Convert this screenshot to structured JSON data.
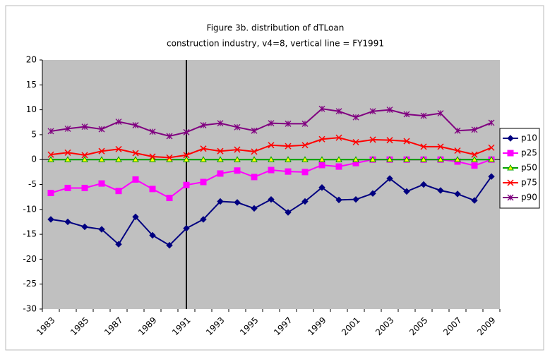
{
  "chart_data": {
    "type": "line",
    "title": "Figure 3b.  distribution of dTLoan",
    "subtitle": "construction industry, v4=8, vertical line = FY1991",
    "categories": [
      "1983",
      null,
      "1985",
      null,
      "1987",
      null,
      "1989",
      null,
      "1991",
      null,
      "1993",
      null,
      "1995",
      null,
      "1997",
      null,
      "1999",
      null,
      "2001",
      null,
      "2003",
      null,
      "2005",
      null,
      "2007",
      null,
      "2009"
    ],
    "vertical_line": "1991",
    "ylim": [
      -30,
      20
    ],
    "yticks": [
      -30,
      -25,
      -20,
      -15,
      -10,
      -5,
      0,
      5,
      10,
      15,
      20
    ],
    "legend": "right",
    "series": [
      {
        "name": "p10",
        "color": "#000080",
        "marker": "diamond",
        "values": [
          -12,
          -12.5,
          -13.5,
          -14,
          -17,
          -11.5,
          -15.2,
          -17.2,
          -13.8,
          -12,
          -8.4,
          -8.6,
          -9.8,
          -8,
          -10.6,
          -8.4,
          -5.6,
          -8.1,
          -8,
          -6.8,
          -3.8,
          -6.4,
          -5,
          -6.2,
          -6.9,
          -8.2,
          -3.4
        ]
      },
      {
        "name": "p25",
        "color": "#ff00ff",
        "marker": "square",
        "values": [
          -6.7,
          -5.7,
          -5.7,
          -4.8,
          -6.3,
          -4,
          -5.9,
          -7.7,
          -5.1,
          -4.5,
          -2.8,
          -2.2,
          -3.5,
          -2.1,
          -2.4,
          -2.5,
          -1.1,
          -1.4,
          -0.7,
          0,
          0,
          0,
          0,
          0,
          -0.4,
          -1.2,
          0
        ]
      },
      {
        "name": "p50",
        "color": "#00a000",
        "marker": "triangle",
        "values": [
          0,
          0,
          0,
          0,
          0,
          0,
          0,
          0,
          0,
          0,
          0,
          0,
          0,
          0,
          0,
          0,
          0,
          0,
          0,
          0,
          0,
          0,
          0,
          0,
          0,
          0,
          0
        ]
      },
      {
        "name": "p75",
        "color": "#ff0000",
        "marker": "x",
        "values": [
          1,
          1.4,
          0.9,
          1.7,
          2.1,
          1.3,
          0.6,
          0.4,
          0.9,
          2.2,
          1.7,
          2,
          1.6,
          2.9,
          2.7,
          2.9,
          4.1,
          4.4,
          3.5,
          4,
          3.9,
          3.7,
          2.6,
          2.6,
          1.8,
          1,
          2.4
        ]
      },
      {
        "name": "p90",
        "color": "#800080",
        "marker": "star",
        "values": [
          5.7,
          6.2,
          6.6,
          6.1,
          7.6,
          6.9,
          5.6,
          4.7,
          5.5,
          6.9,
          7.3,
          6.5,
          5.8,
          7.3,
          7.2,
          7.2,
          10.2,
          9.7,
          8.5,
          9.7,
          10,
          9.1,
          8.8,
          9.3,
          5.8,
          6,
          7.4
        ]
      }
    ]
  }
}
